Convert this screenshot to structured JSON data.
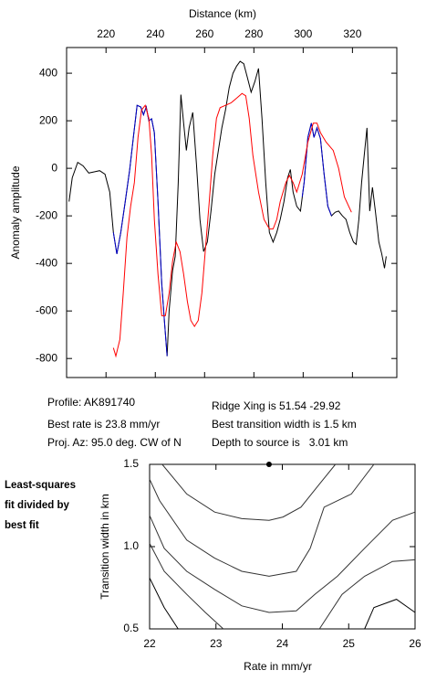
{
  "chart_data": [
    {
      "type": "line",
      "x_label": "Distance (km)",
      "y_label": "Anomaly amplitude",
      "xaxis_position": "top",
      "xlim": [
        204,
        338
      ],
      "ylim": [
        -880,
        508
      ],
      "xticks": [
        220,
        240,
        260,
        280,
        300,
        320
      ],
      "yticks": [
        -800,
        -600,
        -400,
        -200,
        0,
        200,
        400
      ],
      "series": [
        {
          "color": "#000000",
          "x": [
            205,
            206.3,
            208.5,
            210.7,
            213,
            215.2,
            217.4,
            219.6,
            221.5,
            223,
            224.4,
            226,
            227.8,
            229.6,
            231.1,
            232.6,
            234.1,
            235.2,
            236.3,
            237.4,
            238.5,
            239.6,
            241.1,
            242.6,
            243.7,
            244.8,
            245.6,
            247,
            248.1,
            249.3,
            250.4,
            251.5,
            252.6,
            253.7,
            255.2,
            256.7,
            258.1,
            259.6,
            261.1,
            262.6,
            264.1,
            265.6,
            267,
            268.5,
            270,
            271.5,
            273,
            274.4,
            275.9,
            277.4,
            278.9,
            280.4,
            281.9,
            283.3,
            284.8,
            286.3,
            287.8,
            289.3,
            290.7,
            292.2,
            293.7,
            294.8,
            295.9,
            297.4,
            298.9,
            300.4,
            301.9,
            303.3,
            304.4,
            305.6,
            307,
            308.5,
            310,
            311.5,
            313,
            314.4,
            315.9,
            317.4,
            318.9,
            320.4,
            321.5,
            322.6,
            323.7,
            324.8,
            325.9,
            327,
            328.1,
            329.3,
            330.7,
            331.9,
            333,
            333.7
          ],
          "values": [
            -140,
            -40,
            25,
            10,
            -20,
            -15,
            -10,
            -25,
            -100,
            -270,
            -360,
            -270,
            -140,
            -5,
            130,
            265,
            258,
            225,
            258,
            200,
            208,
            150,
            -140,
            -485,
            -640,
            -790,
            -600,
            -430,
            -370,
            -60,
            310,
            190,
            75,
            170,
            235,
            15,
            -215,
            -350,
            -310,
            -180,
            -25,
            75,
            170,
            245,
            340,
            400,
            430,
            450,
            440,
            380,
            320,
            365,
            420,
            210,
            -60,
            -270,
            -310,
            -270,
            -215,
            -140,
            -40,
            -5,
            -100,
            -160,
            -180,
            -60,
            130,
            190,
            130,
            170,
            125,
            -25,
            -160,
            -200,
            -185,
            -180,
            -200,
            -215,
            -270,
            -310,
            -320,
            -215,
            -60,
            55,
            170,
            -180,
            -80,
            -180,
            -310,
            -360,
            -420,
            -370
          ]
        },
        {
          "color": "#0000cc",
          "x": [
            223,
            224.4,
            226,
            227.8,
            229.6,
            231.1,
            232.6,
            234.1,
            235.2,
            236.3,
            237.4,
            238.5,
            239.6,
            241.1,
            242.6,
            243.7,
            244.8,
            null,
            299.6,
            300.4,
            301.9,
            303.3,
            304.4,
            305.6,
            307,
            308.5,
            310,
            311.5
          ],
          "values": [
            -270,
            -360,
            -270,
            -140,
            -5,
            130,
            265,
            258,
            225,
            258,
            200,
            208,
            150,
            -140,
            -485,
            -640,
            -790,
            null,
            -120,
            -60,
            130,
            190,
            130,
            170,
            125,
            -25,
            -160,
            -200
          ]
        },
        {
          "color": "#ff0000",
          "x": [
            223,
            224,
            225.6,
            227,
            228.5,
            230,
            231.5,
            233,
            234.4,
            235.9,
            237.4,
            238.5,
            239.6,
            241.1,
            242.6,
            244.1,
            245.6,
            247,
            248.5,
            250,
            251.5,
            253,
            254.4,
            255.9,
            257.4,
            258.9,
            260.4,
            261.9,
            263.3,
            264.8,
            266.3,
            268.5,
            270.7,
            273,
            275.2,
            276.7,
            278.1,
            279.6,
            281.9,
            284.1,
            286.3,
            287.8,
            289.3,
            290.7,
            293,
            294.4,
            295.9,
            297.4,
            299.6,
            301.9,
            304.1,
            305.6,
            307,
            309.3,
            312.2,
            314.4,
            316.7,
            319.6
          ],
          "values": [
            -755,
            -790,
            -720,
            -525,
            -290,
            -160,
            -60,
            130,
            245,
            265,
            210,
            55,
            -215,
            -445,
            -620,
            -620,
            -525,
            -390,
            -310,
            -350,
            -445,
            -560,
            -640,
            -665,
            -640,
            -525,
            -330,
            -140,
            55,
            210,
            255,
            265,
            275,
            295,
            315,
            305,
            210,
            55,
            -100,
            -215,
            -255,
            -255,
            -215,
            -140,
            -60,
            -30,
            -60,
            -100,
            -25,
            110,
            190,
            190,
            150,
            110,
            75,
            0,
            -120,
            -185
          ]
        }
      ]
    },
    {
      "type": "contour",
      "x_label": "Rate in mm/yr",
      "y_label": "Transition width in km",
      "xlim": [
        22,
        26
      ],
      "ylim": [
        0.5,
        1.5
      ],
      "xticks": [
        22,
        23,
        24,
        25,
        26
      ],
      "yticks": [
        0.5,
        {
          "value": 1,
          "label": "1.0"
        },
        1.5
      ],
      "marker": {
        "x": 23.8,
        "y": 1.5,
        "color": "#000000"
      },
      "series": [
        {
          "color": "#333333",
          "x": [
            22.19,
            22.56,
            22.98,
            23.39,
            23.8,
            24.01,
            24.28,
            24.56,
            24.8
          ],
          "values": [
            1.5,
            1.32,
            1.21,
            1.17,
            1.16,
            1.18,
            1.24,
            1.38,
            1.5
          ]
        },
        {
          "color": "#333333",
          "x": [
            22,
            22.15,
            22.56,
            22.98,
            23.39,
            23.8,
            24.21,
            24.42,
            24.63,
            25.04,
            25.38
          ],
          "values": [
            1.41,
            1.28,
            1.04,
            0.93,
            0.85,
            0.82,
            0.85,
            0.99,
            1.24,
            1.32,
            1.5
          ]
        },
        {
          "color": "#333333",
          "x": [
            22,
            22.22,
            22.56,
            22.98,
            23.39,
            23.8,
            24.21,
            24.49,
            24.83,
            25.24,
            25.66,
            26
          ],
          "values": [
            1.19,
            0.99,
            0.85,
            0.74,
            0.64,
            0.6,
            0.61,
            0.71,
            0.82,
            0.99,
            1.16,
            1.21
          ]
        },
        {
          "color": "#333333",
          "x": [
            22,
            22.22,
            22.56,
            22.84,
            23.11
          ],
          "values": [
            1.02,
            0.85,
            0.71,
            0.6,
            0.5
          ]
        },
        {
          "color": "#333333",
          "x": [
            24.56,
            24.9,
            25.24,
            25.66,
            26
          ],
          "values": [
            0.5,
            0.71,
            0.82,
            0.91,
            0.92
          ]
        },
        {
          "color": "#000000",
          "x": [
            22,
            22.22,
            22.43
          ],
          "values": [
            0.81,
            0.63,
            0.5
          ]
        },
        {
          "color": "#000000",
          "x": [
            25.24,
            25.38,
            25.72,
            26
          ],
          "values": [
            0.5,
            0.63,
            0.68,
            0.6
          ]
        }
      ]
    }
  ],
  "info": {
    "profile": "Profile: AK891740",
    "rate": "Best rate is 23.8 mm/yr",
    "azimuth": "Proj. Az: 95.0 deg. CW of N",
    "ridge": "Ridge Xing is 51.54 -29.92",
    "width": "Best transition width is 1.5 km",
    "depth": "Depth to source is   3.01 km"
  },
  "side_label": [
    "Least-squares",
    "fit divided by",
    "best fit"
  ]
}
